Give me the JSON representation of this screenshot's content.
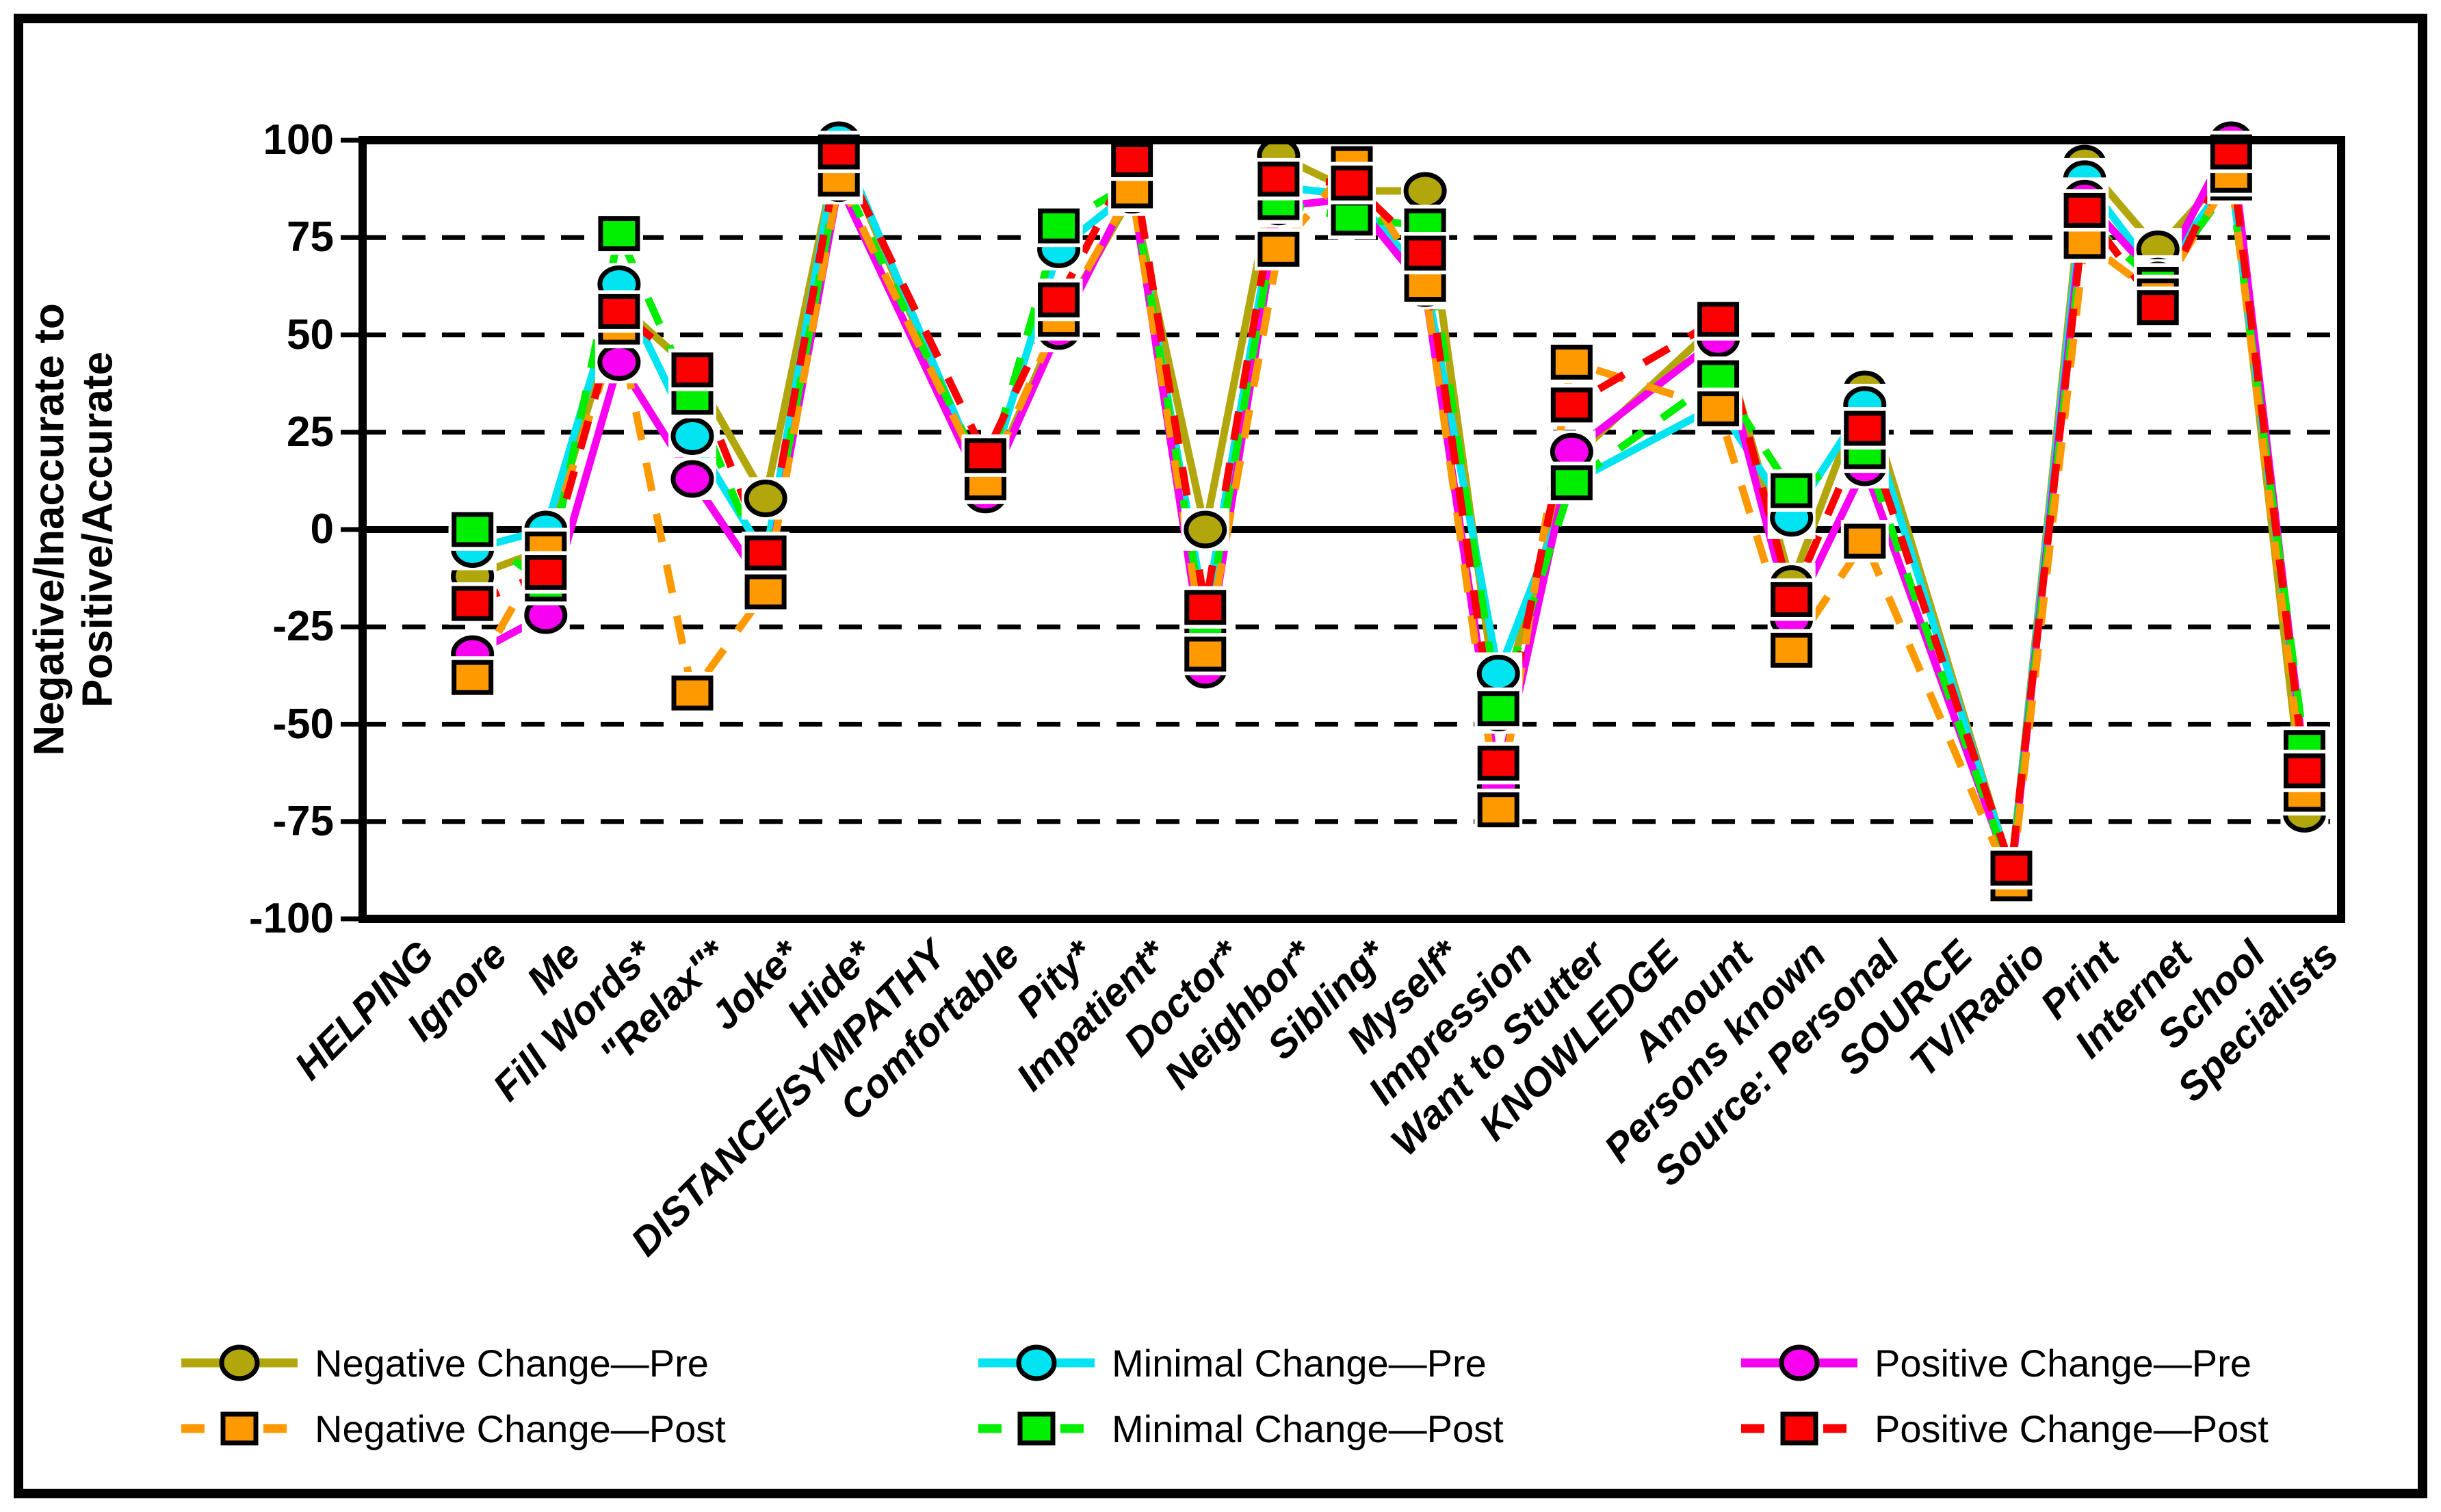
{
  "y_axis": {
    "title_line1": "Negative/Inaccurate to",
    "title_line2": "Positive/Accurate"
  },
  "chart_data": {
    "type": "line",
    "title": "",
    "xlabel": "",
    "ylabel": "Negative/Inaccurate to Positive/Accurate",
    "ylim": [
      -100,
      100
    ],
    "ytick_step": 25,
    "grid": "horizontal dashed, solid zero line",
    "legend_position": "bottom",
    "marker_note": "Pre series = solid line + circle marker; Post series = dashed line + square marker",
    "section_headers_without_data": [
      "HELPING",
      "DISTANCE/SYMPATHY",
      "KNOWLEDGE",
      "SOURCE"
    ],
    "categories": [
      "HELPING",
      "Ignore",
      "Me",
      "Fill Words*",
      "\"Relax\"*",
      "Joke*",
      "Hide*",
      "DISTANCE/SYMPATHY",
      "Comfortable",
      "Pity*",
      "Impatient*",
      "Doctor*",
      "Neighbor*",
      "Sibling*",
      "Myself*",
      "Impression",
      "Want to Stutter",
      "KNOWLEDGE",
      "Amount",
      "Persons known",
      "Source: Personal",
      "SOURCE",
      "TV/Radio",
      "Print",
      "Internet",
      "School",
      "Specialists"
    ],
    "series": [
      {
        "name": "Negative Change—Pre",
        "color": "#b1a70c",
        "marker": "circle",
        "line": "solid",
        "values": [
          null,
          -12,
          -5,
          58,
          41,
          8,
          99,
          null,
          10,
          53,
          86,
          0,
          96,
          87,
          87,
          -47,
          18,
          null,
          53,
          -14,
          36,
          null,
          -88,
          94,
          72,
          93,
          -73
        ]
      },
      {
        "name": "Negative Change—Post",
        "color": "#ff9900",
        "marker": "square",
        "line": "dashed",
        "values": [
          null,
          -38,
          -5,
          52,
          -42,
          -16,
          90,
          null,
          12,
          54,
          87,
          -32,
          72,
          94,
          63,
          -72,
          43,
          null,
          31,
          -31,
          -3,
          null,
          -91,
          74,
          60,
          91,
          -68
        ]
      },
      {
        "name": "Minimal Change—Pre",
        "color": "#00e3f0",
        "marker": "circle",
        "line": "solid",
        "values": [
          null,
          -5,
          0,
          63,
          24,
          -7,
          100,
          null,
          11,
          72,
          87,
          -22,
          88,
          86,
          65,
          -37,
          12,
          null,
          32,
          3,
          32,
          null,
          -88,
          90,
          65,
          91,
          -60
        ]
      },
      {
        "name": "Minimal Change—Post",
        "color": "#00ee00",
        "marker": "square",
        "line": "dashed",
        "values": [
          null,
          0,
          -14,
          76,
          34,
          -11,
          92,
          null,
          13,
          78,
          89,
          -27,
          84,
          80,
          78,
          -46,
          12,
          null,
          39,
          10,
          20,
          null,
          -89,
          80,
          63,
          89,
          -56
        ]
      },
      {
        "name": "Positive Change—Pre",
        "color": "#f800f0",
        "marker": "circle",
        "line": "solid",
        "values": [
          null,
          -32,
          -22,
          43,
          13,
          -15,
          89,
          null,
          9,
          51,
          88,
          -36,
          83,
          85,
          62,
          -66,
          20,
          null,
          49,
          -23,
          16,
          null,
          -89,
          85,
          64,
          100,
          -60
        ]
      },
      {
        "name": "Positive Change—Post",
        "color": "#fa0000",
        "marker": "square",
        "line": "dashed",
        "values": [
          null,
          -19,
          -11,
          56,
          41,
          -6,
          97,
          null,
          19,
          59,
          95,
          -20,
          90,
          89,
          71,
          -60,
          32,
          null,
          54,
          -18,
          26,
          null,
          -87,
          82,
          57,
          97,
          -62
        ]
      }
    ],
    "draw_order": [
      0,
      2,
      4,
      3,
      1,
      5
    ],
    "legend_rows": [
      [
        0,
        2,
        4
      ],
      [
        1,
        3,
        5
      ]
    ]
  }
}
